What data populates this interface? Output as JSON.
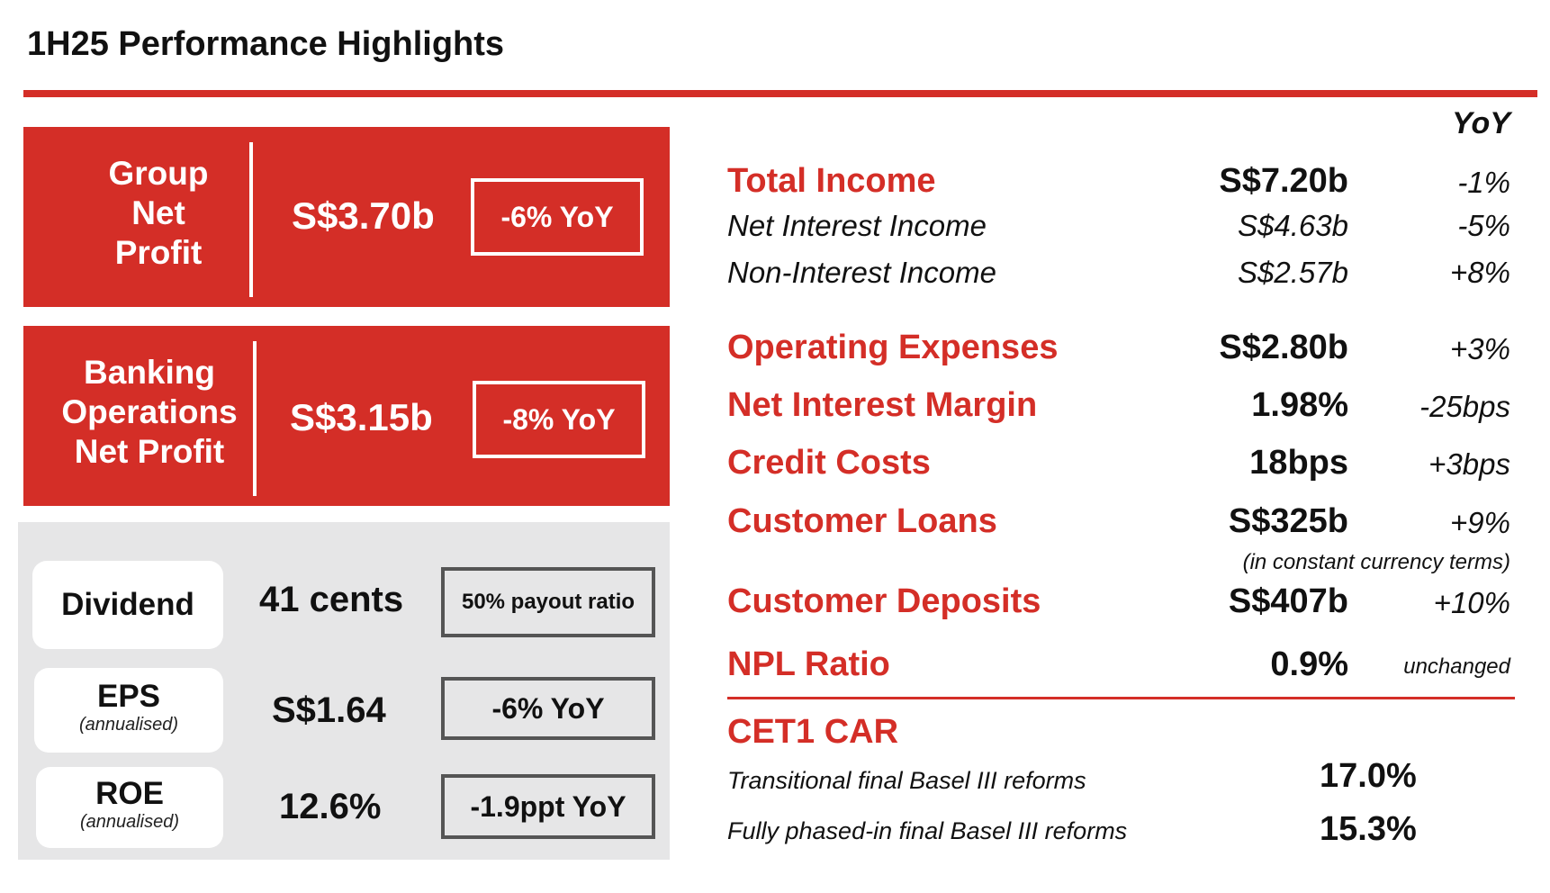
{
  "title": "1H25 Performance Highlights",
  "left": {
    "group_net_profit": {
      "label_lines": [
        "Group",
        "Net",
        "Profit"
      ],
      "value": "S$3.70b",
      "change": "-6% YoY"
    },
    "banking_ops": {
      "label_lines": [
        "Banking",
        "Operations",
        "Net Profit"
      ],
      "value": "S$3.15b",
      "change": "-8% YoY"
    },
    "dividend": {
      "label": "Dividend",
      "value": "41 cents",
      "chip": "50% payout ratio"
    },
    "eps": {
      "label": "EPS",
      "sub": "(annualised)",
      "value": "S$1.64",
      "chip": "-6% YoY"
    },
    "roe": {
      "label": "ROE",
      "sub": "(annualised)",
      "value": "12.6%",
      "chip": "-1.9ppt YoY"
    }
  },
  "right": {
    "yoy_header": "YoY",
    "total_income": {
      "label": "Total Income",
      "value": "S$7.20b",
      "yoy": "-1%"
    },
    "nii": {
      "label": "Net Interest Income",
      "value": "S$4.63b",
      "yoy": "-5%"
    },
    "non_ii": {
      "label": "Non-Interest Income",
      "value": "S$2.57b",
      "yoy": "+8%"
    },
    "opex": {
      "label": "Operating Expenses",
      "value": "S$2.80b",
      "yoy": "+3%"
    },
    "nim": {
      "label": "Net Interest Margin",
      "value": "1.98%",
      "yoy": "-25bps"
    },
    "credit_costs": {
      "label": "Credit Costs",
      "value": "18bps",
      "yoy": "+3bps"
    },
    "customer_loans": {
      "label": "Customer Loans",
      "value": "S$325b",
      "yoy": "+9%",
      "note": "(in constant currency terms)"
    },
    "customer_deposits": {
      "label": "Customer Deposits",
      "value": "S$407b",
      "yoy": "+10%"
    },
    "npl_ratio": {
      "label": "NPL Ratio",
      "value": "0.9%",
      "yoy": "unchanged"
    },
    "cet1": {
      "label": "CET1 CAR",
      "transitional": {
        "label": "Transitional final Basel III reforms",
        "value": "17.0%"
      },
      "fully_phased": {
        "label": "Fully phased-in final Basel III reforms",
        "value": "15.3%"
      }
    }
  },
  "colors": {
    "accent": "#d42e27",
    "panel_grey": "#e6e6e7"
  }
}
